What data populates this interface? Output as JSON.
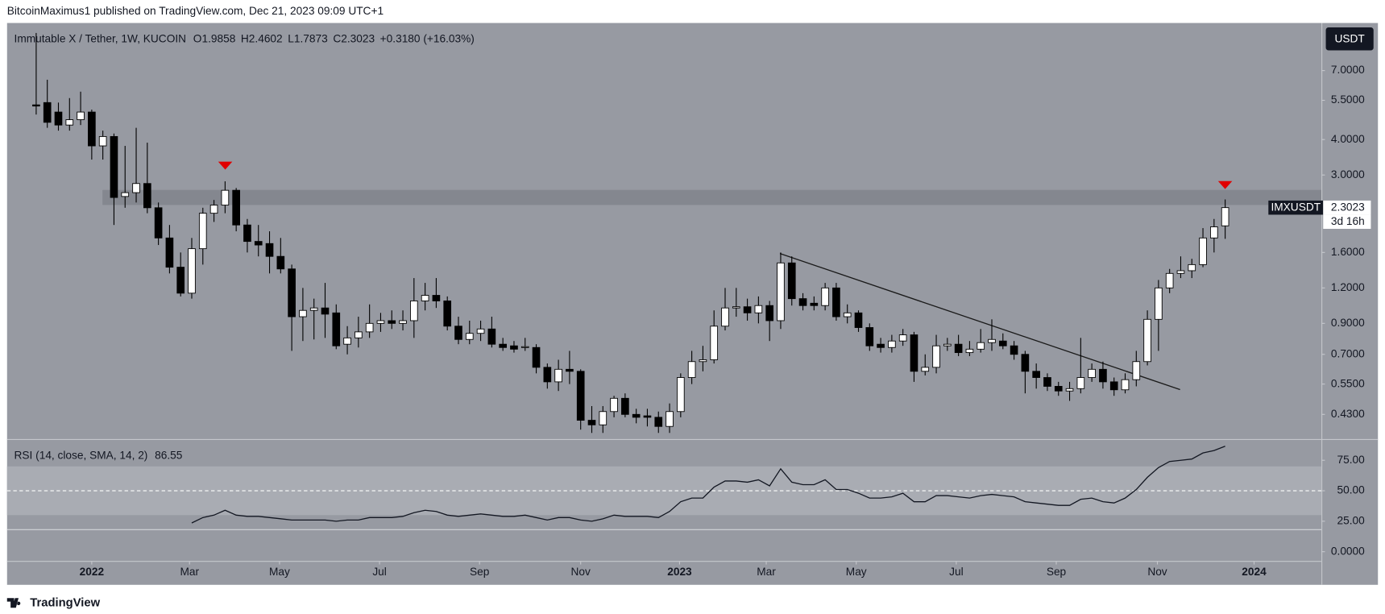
{
  "header": {
    "title": "BitcoinMaximus1 published on TradingView.com, Dec 21, 2023 09:09 UTC+1"
  },
  "footer": {
    "brand": "TradingView"
  },
  "chart_data": [
    {
      "type": "candlestick",
      "title": "Immutable X / Tether, 1W, KUCOIN",
      "ohlc_labels": [
        "O",
        "H",
        "L",
        "C"
      ],
      "change": "+0.3180 (+16.03%)",
      "currency": "USDT",
      "symbol": "IMXUSDT",
      "countdown": "3d 16h",
      "up_color": "#ffffff",
      "down_color": "#000000",
      "log_scale": true,
      "ylim": [
        0.352,
        10.3
      ],
      "yticks": [
        {
          "value": 7,
          "label": "7.0000"
        },
        {
          "value": 5.5,
          "label": "5.5000"
        },
        {
          "value": 4,
          "label": "4.0000"
        },
        {
          "value": 3,
          "label": "3.0000"
        },
        {
          "value": 1.6,
          "label": "1.6000"
        },
        {
          "value": 1.2,
          "label": "1.2000"
        },
        {
          "value": 0.9,
          "label": "0.9000"
        },
        {
          "value": 0.7,
          "label": "0.7000"
        },
        {
          "value": 0.55,
          "label": "0.5500"
        },
        {
          "value": 0.43,
          "label": "0.4300"
        }
      ],
      "xlim": [
        -2.62,
        115.66
      ],
      "xticks": [
        {
          "value": 5.0,
          "label": "2022"
        },
        {
          "value": 13.8,
          "label": "Mar"
        },
        {
          "value": 21.9,
          "label": "May"
        },
        {
          "value": 30.9,
          "label": "Jul"
        },
        {
          "value": 39.9,
          "label": "Sep"
        },
        {
          "value": 49.0,
          "label": "Nov"
        },
        {
          "value": 57.9,
          "label": "2023"
        },
        {
          "value": 65.7,
          "label": "Mar"
        },
        {
          "value": 73.8,
          "label": "May"
        },
        {
          "value": 82.8,
          "label": "Jul"
        },
        {
          "value": 91.8,
          "label": "Sep"
        },
        {
          "value": 100.9,
          "label": "Nov"
        },
        {
          "value": 109.6,
          "label": "2024"
        }
      ],
      "open": [
        5.3,
        5.4,
        5.0,
        4.5,
        4.7,
        5.0,
        3.8,
        4.1,
        2.52,
        2.6,
        2.8,
        2.3,
        1.8,
        1.42,
        1.15,
        1.65,
        2.2,
        2.35,
        2.65,
        2.0,
        1.75,
        1.72,
        1.55,
        1.4,
        0.95,
        1.0,
        1.02,
        0.98,
        0.76,
        0.8,
        0.84,
        0.9,
        0.92,
        0.9,
        0.92,
        1.08,
        1.13,
        1.08,
        0.88,
        0.79,
        0.83,
        0.86,
        0.76,
        0.75,
        0.74,
        0.74,
        0.63,
        0.56,
        0.62,
        0.61,
        0.41,
        0.395,
        0.44,
        0.49,
        0.43,
        0.425,
        0.42,
        0.39,
        0.44,
        0.58,
        0.66,
        0.67,
        0.88,
        1.02,
        1.03,
        0.98,
        1.04,
        0.92,
        1.47,
        1.1,
        1.06,
        1.04,
        1.2,
        0.95,
        0.98,
        0.87,
        0.76,
        0.74,
        0.78,
        0.82,
        0.61,
        0.63,
        0.75,
        0.76,
        0.71,
        0.73,
        0.77,
        0.78,
        0.75,
        0.7,
        0.61,
        0.58,
        0.54,
        0.52,
        0.53,
        0.58,
        0.62,
        0.56,
        0.525,
        0.57,
        0.66,
        0.93,
        1.2,
        1.35,
        1.38,
        1.45,
        1.8,
        1.9858
      ],
      "high": [
        9.5,
        6.5,
        5.4,
        5.6,
        5.9,
        5.1,
        4.3,
        4.2,
        3.8,
        4.4,
        3.9,
        2.4,
        2.0,
        1.6,
        1.8,
        2.3,
        2.45,
        2.85,
        2.7,
        2.1,
        2.0,
        1.9,
        1.8,
        1.45,
        1.2,
        1.1,
        1.25,
        1.05,
        0.88,
        0.95,
        1.05,
        0.98,
        1.0,
        1.0,
        1.3,
        1.25,
        1.3,
        1.12,
        0.95,
        0.92,
        0.92,
        0.95,
        0.8,
        0.78,
        0.8,
        0.76,
        0.65,
        0.67,
        0.72,
        0.62,
        0.46,
        0.46,
        0.5,
        0.51,
        0.45,
        0.45,
        0.44,
        0.47,
        0.6,
        0.72,
        0.75,
        1.0,
        1.2,
        1.2,
        1.1,
        1.12,
        1.08,
        1.6,
        1.55,
        1.15,
        1.12,
        1.25,
        1.25,
        1.05,
        1.0,
        0.9,
        0.8,
        0.82,
        0.86,
        0.84,
        0.7,
        0.82,
        0.8,
        0.82,
        0.78,
        0.86,
        0.93,
        0.83,
        0.78,
        0.72,
        0.65,
        0.6,
        0.56,
        0.56,
        0.8,
        0.65,
        0.66,
        0.58,
        0.6,
        0.72,
        1.0,
        1.28,
        1.4,
        1.55,
        1.52,
        1.95,
        2.1,
        2.4602
      ],
      "low": [
        4.9,
        4.4,
        4.3,
        4.3,
        4.5,
        3.4,
        3.4,
        2.0,
        2.3,
        2.4,
        2.2,
        1.7,
        1.35,
        1.12,
        1.1,
        1.45,
        2.05,
        2.2,
        1.9,
        1.6,
        1.55,
        1.35,
        1.35,
        0.72,
        0.78,
        0.79,
        0.8,
        0.73,
        0.7,
        0.74,
        0.8,
        0.84,
        0.86,
        0.85,
        0.8,
        1.0,
        1.02,
        0.85,
        0.76,
        0.76,
        0.78,
        0.74,
        0.72,
        0.71,
        0.72,
        0.6,
        0.53,
        0.52,
        0.55,
        0.38,
        0.37,
        0.37,
        0.42,
        0.42,
        0.4,
        0.39,
        0.37,
        0.37,
        0.42,
        0.55,
        0.61,
        0.65,
        0.85,
        0.95,
        0.92,
        0.9,
        0.78,
        0.86,
        1.04,
        1.0,
        1.0,
        1.0,
        0.92,
        0.9,
        0.84,
        0.72,
        0.71,
        0.71,
        0.75,
        0.56,
        0.59,
        0.6,
        0.72,
        0.69,
        0.69,
        0.71,
        0.72,
        0.73,
        0.67,
        0.51,
        0.53,
        0.52,
        0.5,
        0.48,
        0.51,
        0.56,
        0.53,
        0.5,
        0.51,
        0.54,
        0.64,
        0.72,
        1.15,
        1.3,
        1.3,
        1.42,
        1.6,
        1.7873
      ],
      "close": [
        5.25,
        4.6,
        4.5,
        4.7,
        5.0,
        3.8,
        4.1,
        2.5,
        2.6,
        2.8,
        2.3,
        1.8,
        1.42,
        1.15,
        1.65,
        2.2,
        2.35,
        2.65,
        2.0,
        1.75,
        1.7,
        1.55,
        1.4,
        0.95,
        1.0,
        1.02,
        0.97,
        0.75,
        0.8,
        0.84,
        0.9,
        0.92,
        0.9,
        0.92,
        1.08,
        1.13,
        1.08,
        0.88,
        0.79,
        0.83,
        0.86,
        0.76,
        0.74,
        0.73,
        0.745,
        0.63,
        0.56,
        0.62,
        0.61,
        0.41,
        0.395,
        0.44,
        0.49,
        0.43,
        0.42,
        0.42,
        0.39,
        0.44,
        0.58,
        0.66,
        0.67,
        0.88,
        1.02,
        1.03,
        0.98,
        1.04,
        0.92,
        1.47,
        1.1,
        1.04,
        1.04,
        1.2,
        0.95,
        0.98,
        0.87,
        0.75,
        0.74,
        0.78,
        0.82,
        0.61,
        0.63,
        0.75,
        0.76,
        0.71,
        0.73,
        0.77,
        0.79,
        0.75,
        0.7,
        0.61,
        0.58,
        0.54,
        0.52,
        0.53,
        0.58,
        0.62,
        0.56,
        0.525,
        0.57,
        0.66,
        0.93,
        1.2,
        1.35,
        1.38,
        1.45,
        1.8,
        1.97,
        2.3023
      ]
    },
    {
      "type": "line",
      "title": "RSI (14, close, SMA, 14, 2)",
      "color": "#131722",
      "band": [
        30,
        70
      ],
      "midline": 50,
      "ylim": [
        -7.6,
        92.4
      ],
      "yticks": [
        {
          "value": 75,
          "label": "75.00"
        },
        {
          "value": 50,
          "label": "50.00"
        },
        {
          "value": 25,
          "label": "25.00"
        },
        {
          "value": 0,
          "label": "0.0000"
        }
      ],
      "values": [
        null,
        null,
        null,
        null,
        null,
        null,
        null,
        null,
        null,
        null,
        null,
        null,
        null,
        null,
        23.6,
        28,
        30,
        34,
        30,
        29,
        29,
        28,
        27,
        26,
        26,
        26,
        26,
        25,
        26,
        26,
        28,
        28,
        28,
        29,
        32,
        34,
        33,
        30,
        29,
        30,
        31,
        30,
        29,
        29,
        30,
        28,
        26,
        28,
        28,
        26,
        25,
        27,
        30,
        29,
        29,
        29,
        28,
        33,
        41,
        44,
        44,
        53,
        58,
        58,
        57,
        59,
        54,
        68,
        57,
        55,
        55,
        59,
        51,
        51,
        48,
        44,
        44,
        45,
        48,
        41,
        41,
        46,
        46,
        45,
        44,
        46,
        47,
        46,
        45,
        41,
        40,
        39,
        38,
        38,
        43,
        44,
        41,
        40,
        44,
        51,
        61,
        69,
        74,
        75,
        76,
        81,
        83,
        86.55
      ]
    }
  ]
}
